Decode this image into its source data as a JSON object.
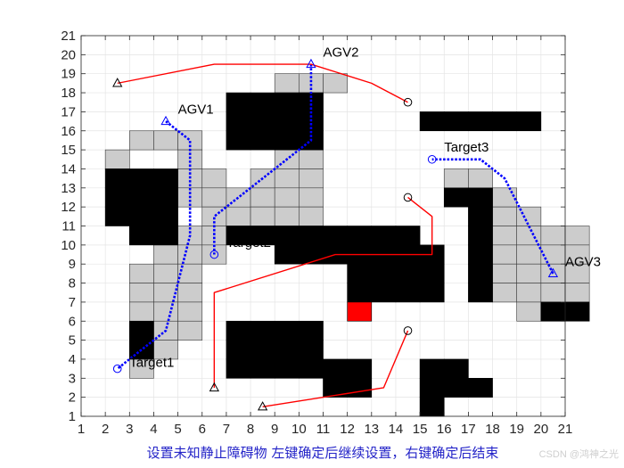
{
  "chart_data": {
    "type": "grid-path-map",
    "title": "设置未知静止障碍物 左键确定后继续设置，右键确定后结束",
    "xlim": [
      1,
      21
    ],
    "ylim": [
      1,
      21
    ],
    "xticks": [
      1,
      2,
      3,
      4,
      5,
      6,
      7,
      8,
      9,
      10,
      11,
      12,
      13,
      14,
      15,
      16,
      17,
      18,
      19,
      20,
      21
    ],
    "yticks": [
      1,
      2,
      3,
      4,
      5,
      6,
      7,
      8,
      9,
      10,
      11,
      12,
      13,
      14,
      15,
      16,
      17,
      18,
      19,
      20,
      21
    ],
    "grid": true,
    "colors": {
      "obstacle": "#000000",
      "explored": "#cccccc",
      "new_obstacle": "#ff0000",
      "agv_path": "#0000ff",
      "other_path": "#ff0000",
      "title": "#2424c8"
    },
    "explored_cells": [
      [
        2,
        15
      ],
      [
        3,
        16
      ],
      [
        4,
        16
      ],
      [
        5,
        16
      ],
      [
        5,
        15
      ],
      [
        5,
        14
      ],
      [
        6,
        14
      ],
      [
        5,
        13
      ],
      [
        6,
        13
      ],
      [
        6,
        12
      ],
      [
        5,
        11
      ],
      [
        6,
        11
      ],
      [
        4,
        10
      ],
      [
        5,
        10
      ],
      [
        6,
        10
      ],
      [
        3,
        9
      ],
      [
        4,
        9
      ],
      [
        5,
        9
      ],
      [
        3,
        8
      ],
      [
        4,
        8
      ],
      [
        5,
        8
      ],
      [
        3,
        7
      ],
      [
        4,
        7
      ],
      [
        5,
        7
      ],
      [
        4,
        6
      ],
      [
        5,
        6
      ],
      [
        4,
        5
      ],
      [
        3,
        4
      ],
      [
        7,
        12
      ],
      [
        7,
        13
      ],
      [
        8,
        13
      ],
      [
        8,
        12
      ],
      [
        8,
        14
      ],
      [
        9,
        14
      ],
      [
        9,
        13
      ],
      [
        9,
        12
      ],
      [
        10,
        14
      ],
      [
        10,
        13
      ],
      [
        10,
        12
      ],
      [
        9,
        15
      ],
      [
        10,
        15
      ],
      [
        10,
        16
      ],
      [
        10,
        17
      ],
      [
        9,
        19
      ],
      [
        10,
        19
      ],
      [
        10,
        18
      ],
      [
        11,
        19
      ],
      [
        16,
        14
      ],
      [
        17,
        14
      ],
      [
        17,
        13
      ],
      [
        18,
        13
      ],
      [
        18,
        12
      ],
      [
        18,
        11
      ],
      [
        18,
        10
      ],
      [
        18,
        9
      ],
      [
        18,
        8
      ],
      [
        19,
        12
      ],
      [
        19,
        11
      ],
      [
        19,
        10
      ],
      [
        19,
        9
      ],
      [
        19,
        8
      ],
      [
        19,
        7
      ],
      [
        20,
        11
      ],
      [
        20,
        10
      ],
      [
        20,
        9
      ],
      [
        20,
        8
      ],
      [
        20,
        7
      ],
      [
        21,
        11
      ],
      [
        21,
        10
      ],
      [
        21,
        9
      ],
      [
        21,
        8
      ]
    ],
    "obstacles": [
      [
        2,
        14
      ],
      [
        3,
        14
      ],
      [
        4,
        14
      ],
      [
        2,
        13
      ],
      [
        3,
        13
      ],
      [
        4,
        13
      ],
      [
        2,
        12
      ],
      [
        3,
        12
      ],
      [
        4,
        12
      ],
      [
        3,
        11
      ],
      [
        4,
        11
      ],
      [
        7,
        18
      ],
      [
        8,
        18
      ],
      [
        9,
        18
      ],
      [
        10,
        18
      ],
      [
        7,
        17
      ],
      [
        8,
        17
      ],
      [
        9,
        17
      ],
      [
        10,
        17
      ],
      [
        7,
        16
      ],
      [
        8,
        16
      ],
      [
        9,
        16
      ],
      [
        10,
        16
      ],
      [
        7,
        11
      ],
      [
        8,
        11
      ],
      [
        9,
        11
      ],
      [
        10,
        11
      ],
      [
        11,
        11
      ],
      [
        12,
        11
      ],
      [
        13,
        11
      ],
      [
        14,
        11
      ],
      [
        9,
        10
      ],
      [
        10,
        10
      ],
      [
        11,
        10
      ],
      [
        12,
        10
      ],
      [
        13,
        10
      ],
      [
        14,
        10
      ],
      [
        15,
        10
      ],
      [
        15,
        17
      ],
      [
        16,
        17
      ],
      [
        17,
        17
      ],
      [
        18,
        17
      ],
      [
        19,
        17
      ],
      [
        16,
        13
      ],
      [
        17,
        13
      ],
      [
        17,
        12
      ],
      [
        17,
        11
      ],
      [
        17,
        10
      ],
      [
        17,
        9
      ],
      [
        17,
        8
      ],
      [
        12,
        9
      ],
      [
        13,
        9
      ],
      [
        14,
        9
      ],
      [
        15,
        9
      ],
      [
        12,
        8
      ],
      [
        13,
        8
      ],
      [
        14,
        8
      ],
      [
        15,
        8
      ],
      [
        20,
        7
      ],
      [
        21,
        7
      ],
      [
        3,
        6
      ],
      [
        3,
        5
      ],
      [
        7,
        6
      ],
      [
        8,
        6
      ],
      [
        9,
        6
      ],
      [
        10,
        6
      ],
      [
        7,
        5
      ],
      [
        8,
        5
      ],
      [
        9,
        5
      ],
      [
        10,
        5
      ],
      [
        7,
        4
      ],
      [
        8,
        4
      ],
      [
        9,
        4
      ],
      [
        10,
        4
      ],
      [
        11,
        4
      ],
      [
        12,
        4
      ],
      [
        11,
        3
      ],
      [
        12,
        3
      ],
      [
        15,
        4
      ],
      [
        16,
        4
      ],
      [
        15,
        3
      ],
      [
        16,
        3
      ],
      [
        17,
        3
      ],
      [
        15,
        2
      ]
    ],
    "new_obstacles": [
      [
        12,
        7
      ]
    ],
    "series": [
      {
        "name": "AGV1",
        "color": "#0000ff",
        "style": "dotted",
        "x": [
          4.5,
          5.5,
          5.5,
          5.5,
          4.5,
          2.5
        ],
        "y": [
          16.5,
          15.5,
          14.5,
          10.5,
          5.5,
          3.5
        ]
      },
      {
        "name": "AGV2",
        "color": "#0000ff",
        "style": "dotted",
        "x": [
          10.5,
          10.5,
          6.5,
          6.5
        ],
        "y": [
          19.5,
          15.5,
          11.5,
          9.5
        ]
      },
      {
        "name": "AGV3",
        "color": "#0000ff",
        "style": "dotted",
        "x": [
          20.5,
          18.5,
          17.5,
          15.5
        ],
        "y": [
          8.5,
          13.5,
          14.5,
          14.5
        ]
      },
      {
        "color": "#ff0000",
        "style": "solid",
        "x": [
          2.5,
          6.5,
          10.5,
          13,
          14.5
        ],
        "y": [
          18.5,
          19.5,
          19.5,
          18.5,
          17.5
        ]
      },
      {
        "color": "#ff0000",
        "style": "solid",
        "x": [
          14.5,
          15.5,
          15.5,
          11.5,
          6.5,
          6.5
        ],
        "y": [
          12.5,
          11.5,
          9.5,
          9.5,
          7.5,
          2.5
        ]
      },
      {
        "color": "#ff0000",
        "style": "solid",
        "x": [
          8.5,
          13.5,
          14.5
        ],
        "y": [
          1.5,
          2.5,
          5.5
        ]
      }
    ],
    "markers": [
      {
        "shape": "triangle",
        "color": "#0000ff",
        "x": 4.5,
        "y": 16.5
      },
      {
        "shape": "triangle",
        "color": "#0000ff",
        "x": 10.5,
        "y": 19.5
      },
      {
        "shape": "triangle",
        "color": "#0000ff",
        "x": 20.5,
        "y": 8.5
      },
      {
        "shape": "circle",
        "color": "#0000ff",
        "x": 2.5,
        "y": 3.5
      },
      {
        "shape": "circle",
        "color": "#0000ff",
        "x": 6.5,
        "y": 9.5
      },
      {
        "shape": "circle",
        "color": "#0000ff",
        "x": 15.5,
        "y": 14.5
      },
      {
        "shape": "triangle",
        "color": "#000000",
        "x": 2.5,
        "y": 18.5
      },
      {
        "shape": "triangle",
        "color": "#000000",
        "x": 6.5,
        "y": 2.5
      },
      {
        "shape": "triangle",
        "color": "#000000",
        "x": 8.5,
        "y": 1.5
      },
      {
        "shape": "circle",
        "color": "#000000",
        "x": 14.5,
        "y": 17.5
      },
      {
        "shape": "circle",
        "color": "#000000",
        "x": 14.5,
        "y": 12.5
      },
      {
        "shape": "circle",
        "color": "#000000",
        "x": 14.5,
        "y": 5.5
      }
    ],
    "annotations": [
      {
        "text": "AGV1",
        "x": 5.0,
        "y": 16.9
      },
      {
        "text": "AGV2",
        "x": 11.0,
        "y": 19.9
      },
      {
        "text": "AGV3",
        "x": 21.0,
        "y": 8.9
      },
      {
        "text": "Target1",
        "x": 3.0,
        "y": 3.6
      },
      {
        "text": "Target2",
        "x": 7.0,
        "y": 9.9
      },
      {
        "text": "Target3",
        "x": 16.0,
        "y": 14.9
      }
    ]
  },
  "watermark": "CSDN @鸿神之光"
}
